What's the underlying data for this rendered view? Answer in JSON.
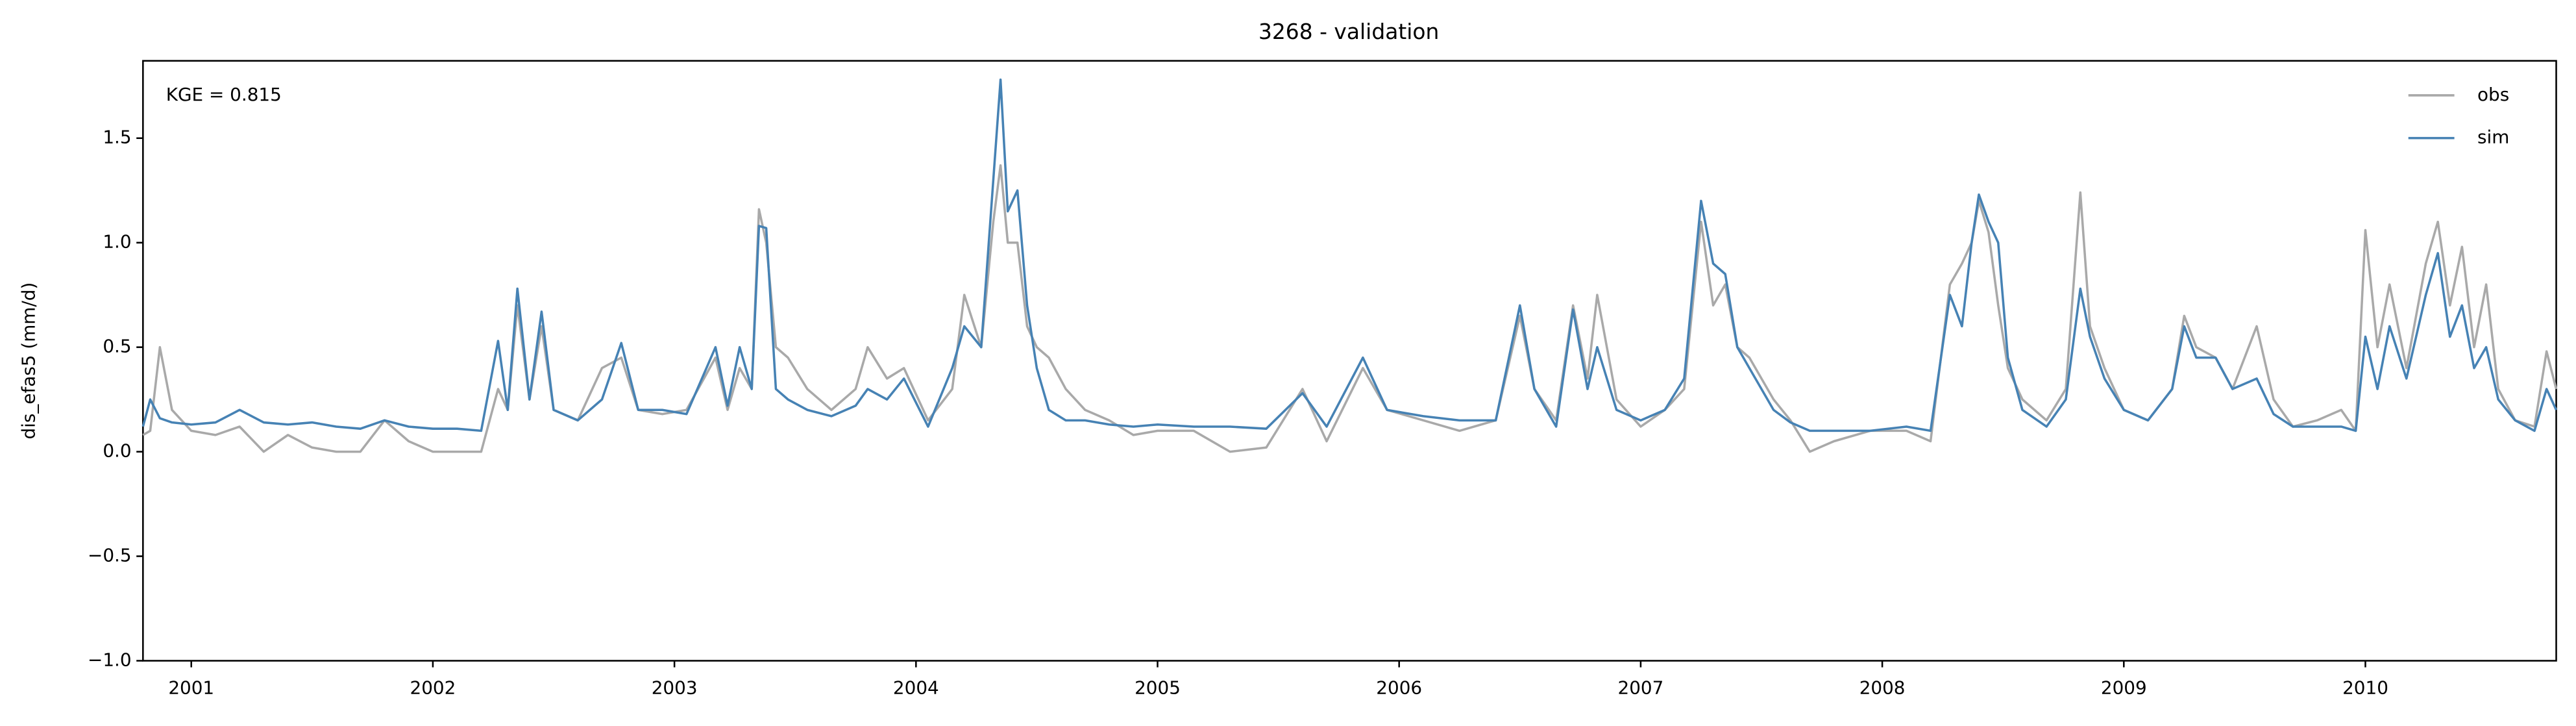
{
  "chart_data": {
    "type": "line",
    "title": "3268 - validation",
    "ylabel": "dis_efas5 (mm/d)",
    "annotation": "KGE = 0.815",
    "x": [
      2000.8,
      2000.83,
      2000.87,
      2000.92,
      2001.0,
      2001.1,
      2001.2,
      2001.3,
      2001.4,
      2001.5,
      2001.6,
      2001.7,
      2001.8,
      2001.9,
      2002.0,
      2002.1,
      2002.2,
      2002.27,
      2002.31,
      2002.35,
      2002.4,
      2002.45,
      2002.5,
      2002.6,
      2002.7,
      2002.78,
      2002.85,
      2002.95,
      2003.05,
      2003.17,
      2003.22,
      2003.27,
      2003.32,
      2003.35,
      2003.38,
      2003.42,
      2003.47,
      2003.55,
      2003.65,
      2003.75,
      2003.8,
      2003.88,
      2003.95,
      2004.05,
      2004.15,
      2004.2,
      2004.27,
      2004.32,
      2004.35,
      2004.38,
      2004.42,
      2004.46,
      2004.5,
      2004.55,
      2004.62,
      2004.7,
      2004.8,
      2004.9,
      2005.0,
      2005.15,
      2005.3,
      2005.45,
      2005.6,
      2005.7,
      2005.85,
      2005.95,
      2006.1,
      2006.25,
      2006.4,
      2006.5,
      2006.56,
      2006.65,
      2006.72,
      2006.78,
      2006.82,
      2006.9,
      2007.0,
      2007.1,
      2007.18,
      2007.25,
      2007.3,
      2007.35,
      2007.4,
      2007.45,
      2007.55,
      2007.62,
      2007.7,
      2007.8,
      2007.95,
      2008.1,
      2008.2,
      2008.28,
      2008.33,
      2008.37,
      2008.4,
      2008.44,
      2008.48,
      2008.52,
      2008.58,
      2008.68,
      2008.76,
      2008.82,
      2008.86,
      2008.92,
      2009.0,
      2009.1,
      2009.2,
      2009.25,
      2009.3,
      2009.38,
      2009.45,
      2009.55,
      2009.62,
      2009.7,
      2009.8,
      2009.9,
      2009.96,
      2010.0,
      2010.05,
      2010.1,
      2010.17,
      2010.25,
      2010.3,
      2010.35,
      2010.4,
      2010.45,
      2010.5,
      2010.55,
      2010.62,
      2010.7,
      2010.75,
      2010.79
    ],
    "series": [
      {
        "name": "obs",
        "color": "#a9a9a9",
        "values": [
          0.08,
          0.1,
          0.5,
          0.2,
          0.1,
          0.08,
          0.12,
          0.0,
          0.08,
          0.02,
          0.0,
          0.0,
          0.15,
          0.05,
          0.0,
          0.0,
          0.0,
          0.3,
          0.2,
          0.7,
          0.25,
          0.6,
          0.2,
          0.15,
          0.4,
          0.45,
          0.2,
          0.18,
          0.2,
          0.45,
          0.2,
          0.4,
          0.3,
          1.16,
          1.0,
          0.5,
          0.45,
          0.3,
          0.2,
          0.3,
          0.5,
          0.35,
          0.4,
          0.15,
          0.3,
          0.75,
          0.5,
          1.1,
          1.37,
          1.0,
          1.0,
          0.6,
          0.5,
          0.45,
          0.3,
          0.2,
          0.15,
          0.08,
          0.1,
          0.1,
          0.0,
          0.02,
          0.3,
          0.05,
          0.4,
          0.2,
          0.15,
          0.1,
          0.15,
          0.65,
          0.3,
          0.15,
          0.7,
          0.35,
          0.75,
          0.25,
          0.12,
          0.2,
          0.3,
          1.1,
          0.7,
          0.8,
          0.5,
          0.45,
          0.25,
          0.15,
          0.0,
          0.05,
          0.1,
          0.1,
          0.05,
          0.8,
          0.9,
          1.0,
          1.2,
          1.05,
          0.7,
          0.4,
          0.25,
          0.15,
          0.3,
          1.24,
          0.6,
          0.4,
          0.2,
          0.15,
          0.3,
          0.65,
          0.5,
          0.45,
          0.3,
          0.6,
          0.25,
          0.12,
          0.15,
          0.2,
          0.1,
          1.06,
          0.5,
          0.8,
          0.4,
          0.9,
          1.1,
          0.7,
          0.98,
          0.5,
          0.8,
          0.3,
          0.15,
          0.12,
          0.48,
          0.3
        ]
      },
      {
        "name": "sim",
        "color": "#4682b4",
        "values": [
          0.12,
          0.25,
          0.16,
          0.14,
          0.13,
          0.14,
          0.2,
          0.14,
          0.13,
          0.14,
          0.12,
          0.11,
          0.15,
          0.12,
          0.11,
          0.11,
          0.1,
          0.53,
          0.2,
          0.78,
          0.25,
          0.67,
          0.2,
          0.15,
          0.25,
          0.52,
          0.2,
          0.2,
          0.18,
          0.5,
          0.22,
          0.5,
          0.3,
          1.08,
          1.07,
          0.3,
          0.25,
          0.2,
          0.17,
          0.22,
          0.3,
          0.25,
          0.35,
          0.12,
          0.4,
          0.6,
          0.5,
          1.3,
          1.78,
          1.15,
          1.25,
          0.7,
          0.4,
          0.2,
          0.15,
          0.15,
          0.13,
          0.12,
          0.13,
          0.12,
          0.12,
          0.11,
          0.28,
          0.12,
          0.45,
          0.2,
          0.17,
          0.15,
          0.15,
          0.7,
          0.3,
          0.12,
          0.68,
          0.3,
          0.5,
          0.2,
          0.15,
          0.2,
          0.35,
          1.2,
          0.9,
          0.85,
          0.5,
          0.4,
          0.2,
          0.14,
          0.1,
          0.1,
          0.1,
          0.12,
          0.1,
          0.75,
          0.6,
          1.0,
          1.23,
          1.1,
          1.0,
          0.45,
          0.2,
          0.12,
          0.25,
          0.78,
          0.55,
          0.35,
          0.2,
          0.15,
          0.3,
          0.6,
          0.45,
          0.45,
          0.3,
          0.35,
          0.18,
          0.12,
          0.12,
          0.12,
          0.1,
          0.55,
          0.3,
          0.6,
          0.35,
          0.75,
          0.95,
          0.55,
          0.7,
          0.4,
          0.5,
          0.25,
          0.15,
          0.1,
          0.3,
          0.2
        ]
      }
    ],
    "xlim": [
      2000.8,
      2010.79
    ],
    "xticks": [
      2001,
      2002,
      2003,
      2004,
      2005,
      2006,
      2007,
      2008,
      2009,
      2010
    ],
    "ylim": [
      -1,
      1.87
    ],
    "yticks": [
      {
        "value": -1,
        "label": "−1.0"
      },
      {
        "value": -0.5,
        "label": "−0.5"
      },
      {
        "value": 0,
        "label": "0.0"
      },
      {
        "value": 0.5,
        "label": "0.5"
      },
      {
        "value": 1,
        "label": "1.0"
      },
      {
        "value": 1.5,
        "label": "1.5"
      }
    ],
    "legend": "upper right"
  }
}
